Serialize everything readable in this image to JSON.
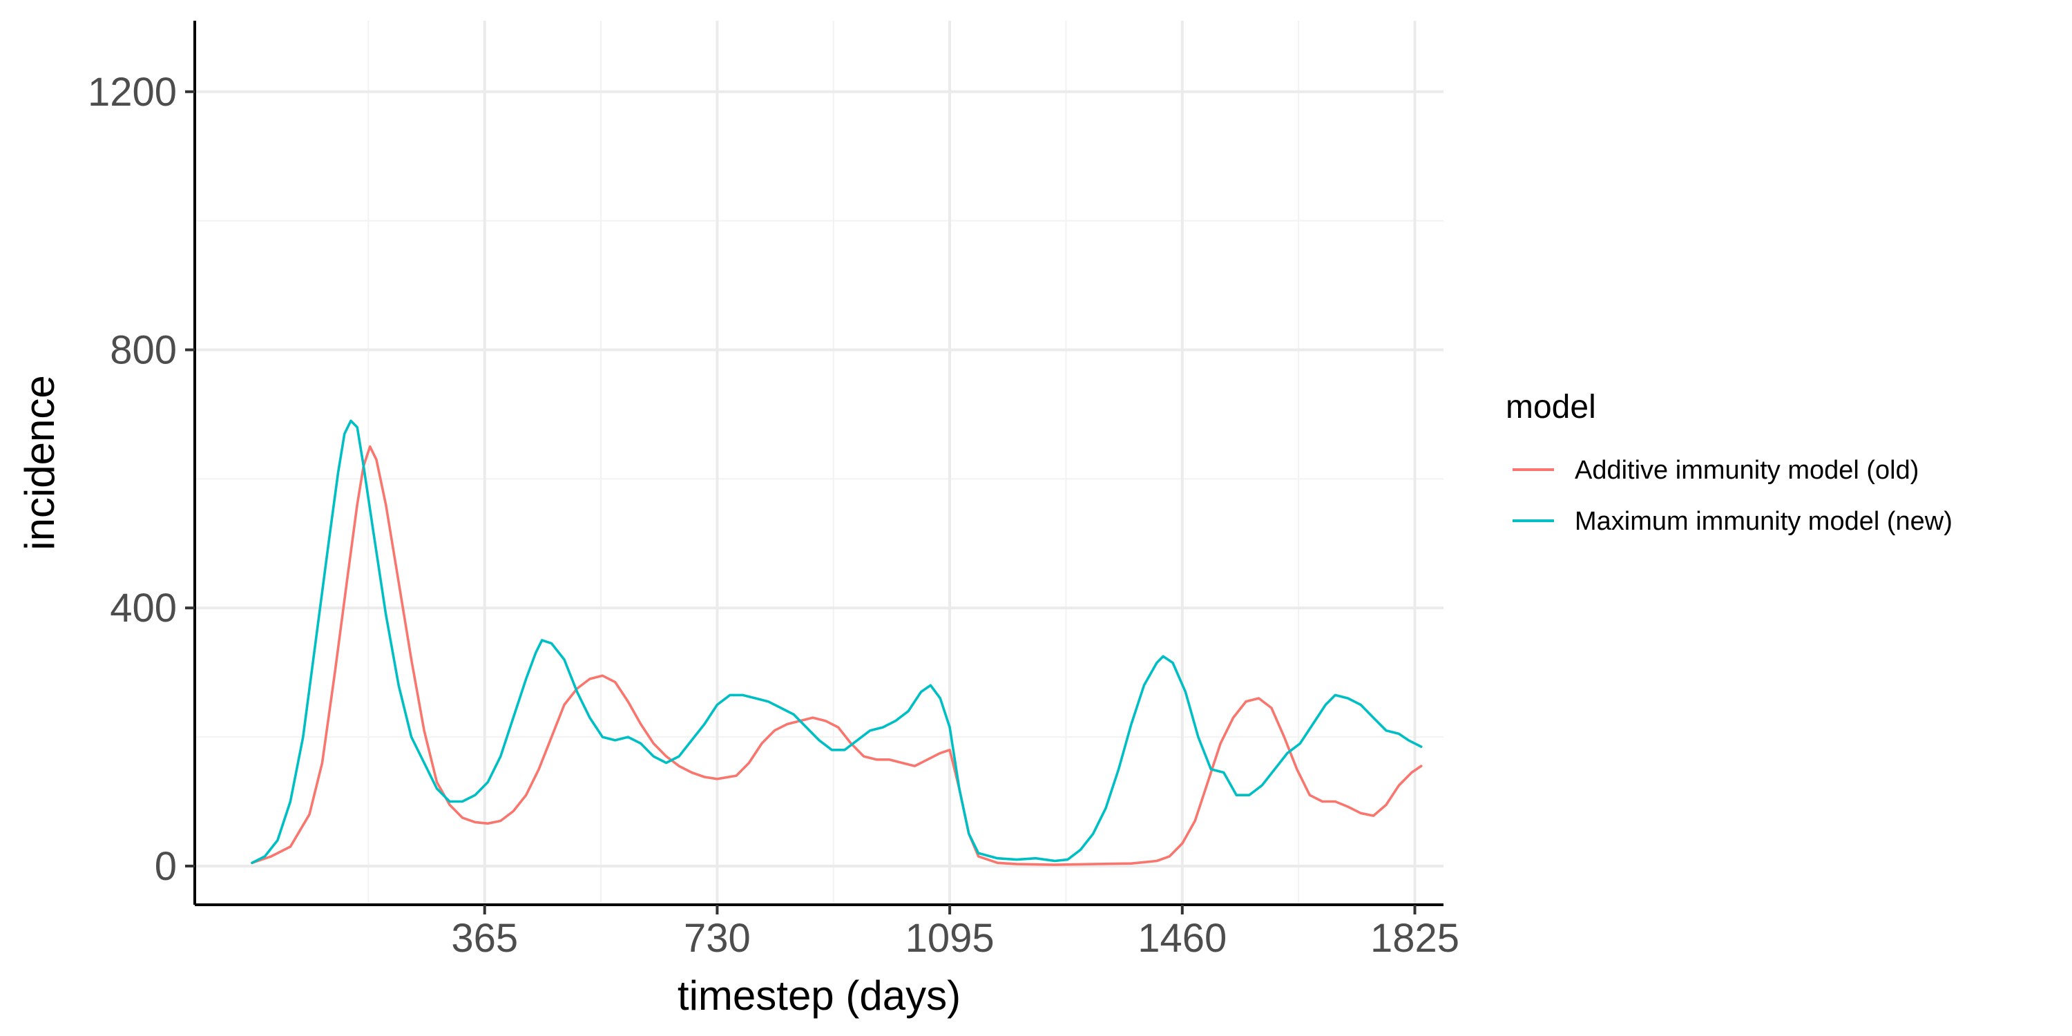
{
  "chart_data": {
    "type": "line",
    "xlabel": "timestep (days)",
    "ylabel": "incidence",
    "xlim": [
      -90,
      1870
    ],
    "ylim": [
      -60,
      1310
    ],
    "x_ticks": [
      365,
      730,
      1095,
      1460,
      1825
    ],
    "x_tick_labels": [
      "365",
      "730",
      "1095",
      "1460",
      "1825"
    ],
    "y_ticks": [
      0,
      400,
      800,
      1200
    ],
    "y_tick_labels": [
      "0",
      "400",
      "800",
      "1200"
    ],
    "grid": true,
    "legend": {
      "title": "model",
      "placement": "right"
    },
    "series": [
      {
        "name": "Additive immunity model (old)",
        "color": "#F8766D",
        "points": [
          [
            0,
            5
          ],
          [
            30,
            15
          ],
          [
            60,
            30
          ],
          [
            90,
            80
          ],
          [
            110,
            160
          ],
          [
            130,
            300
          ],
          [
            150,
            450
          ],
          [
            165,
            560
          ],
          [
            175,
            620
          ],
          [
            185,
            650
          ],
          [
            195,
            630
          ],
          [
            210,
            560
          ],
          [
            230,
            440
          ],
          [
            250,
            320
          ],
          [
            270,
            210
          ],
          [
            290,
            130
          ],
          [
            310,
            95
          ],
          [
            330,
            75
          ],
          [
            350,
            68
          ],
          [
            370,
            66
          ],
          [
            390,
            70
          ],
          [
            410,
            85
          ],
          [
            430,
            110
          ],
          [
            450,
            150
          ],
          [
            470,
            200
          ],
          [
            490,
            250
          ],
          [
            510,
            275
          ],
          [
            530,
            290
          ],
          [
            550,
            295
          ],
          [
            570,
            285
          ],
          [
            590,
            255
          ],
          [
            610,
            220
          ],
          [
            630,
            190
          ],
          [
            650,
            170
          ],
          [
            670,
            155
          ],
          [
            690,
            145
          ],
          [
            710,
            138
          ],
          [
            730,
            135
          ],
          [
            760,
            140
          ],
          [
            780,
            160
          ],
          [
            800,
            190
          ],
          [
            820,
            210
          ],
          [
            840,
            220
          ],
          [
            860,
            225
          ],
          [
            880,
            230
          ],
          [
            900,
            225
          ],
          [
            920,
            215
          ],
          [
            940,
            190
          ],
          [
            960,
            170
          ],
          [
            980,
            165
          ],
          [
            1000,
            165
          ],
          [
            1020,
            160
          ],
          [
            1040,
            155
          ],
          [
            1060,
            165
          ],
          [
            1080,
            175
          ],
          [
            1095,
            180
          ],
          [
            1110,
            120
          ],
          [
            1125,
            50
          ],
          [
            1140,
            15
          ],
          [
            1170,
            5
          ],
          [
            1200,
            3
          ],
          [
            1260,
            2
          ],
          [
            1320,
            3
          ],
          [
            1380,
            4
          ],
          [
            1420,
            8
          ],
          [
            1440,
            15
          ],
          [
            1460,
            35
          ],
          [
            1480,
            70
          ],
          [
            1500,
            130
          ],
          [
            1520,
            190
          ],
          [
            1540,
            230
          ],
          [
            1560,
            255
          ],
          [
            1580,
            260
          ],
          [
            1600,
            245
          ],
          [
            1620,
            200
          ],
          [
            1640,
            150
          ],
          [
            1660,
            110
          ],
          [
            1680,
            100
          ],
          [
            1700,
            100
          ],
          [
            1720,
            92
          ],
          [
            1740,
            82
          ],
          [
            1760,
            78
          ],
          [
            1780,
            95
          ],
          [
            1800,
            125
          ],
          [
            1820,
            145
          ],
          [
            1835,
            155
          ]
        ]
      },
      {
        "name": "Maximum immunity model (new)",
        "color": "#00BFC4",
        "points": [
          [
            0,
            5
          ],
          [
            20,
            15
          ],
          [
            40,
            40
          ],
          [
            60,
            100
          ],
          [
            80,
            200
          ],
          [
            100,
            350
          ],
          [
            120,
            500
          ],
          [
            135,
            610
          ],
          [
            145,
            670
          ],
          [
            155,
            690
          ],
          [
            165,
            680
          ],
          [
            175,
            620
          ],
          [
            190,
            520
          ],
          [
            210,
            390
          ],
          [
            230,
            280
          ],
          [
            250,
            200
          ],
          [
            270,
            160
          ],
          [
            290,
            120
          ],
          [
            310,
            100
          ],
          [
            330,
            100
          ],
          [
            350,
            110
          ],
          [
            370,
            130
          ],
          [
            390,
            170
          ],
          [
            410,
            230
          ],
          [
            430,
            290
          ],
          [
            445,
            330
          ],
          [
            455,
            350
          ],
          [
            470,
            345
          ],
          [
            490,
            320
          ],
          [
            510,
            270
          ],
          [
            530,
            230
          ],
          [
            550,
            200
          ],
          [
            570,
            195
          ],
          [
            590,
            200
          ],
          [
            610,
            190
          ],
          [
            630,
            170
          ],
          [
            650,
            160
          ],
          [
            670,
            170
          ],
          [
            690,
            195
          ],
          [
            710,
            220
          ],
          [
            730,
            250
          ],
          [
            750,
            265
          ],
          [
            770,
            265
          ],
          [
            790,
            260
          ],
          [
            810,
            255
          ],
          [
            830,
            245
          ],
          [
            850,
            235
          ],
          [
            870,
            215
          ],
          [
            890,
            195
          ],
          [
            910,
            180
          ],
          [
            930,
            180
          ],
          [
            950,
            195
          ],
          [
            970,
            210
          ],
          [
            990,
            215
          ],
          [
            1010,
            225
          ],
          [
            1030,
            240
          ],
          [
            1050,
            270
          ],
          [
            1065,
            280
          ],
          [
            1080,
            260
          ],
          [
            1095,
            215
          ],
          [
            1110,
            120
          ],
          [
            1125,
            50
          ],
          [
            1140,
            20
          ],
          [
            1170,
            12
          ],
          [
            1200,
            10
          ],
          [
            1230,
            12
          ],
          [
            1260,
            8
          ],
          [
            1280,
            10
          ],
          [
            1300,
            25
          ],
          [
            1320,
            50
          ],
          [
            1340,
            90
          ],
          [
            1360,
            150
          ],
          [
            1380,
            220
          ],
          [
            1400,
            280
          ],
          [
            1420,
            315
          ],
          [
            1430,
            325
          ],
          [
            1445,
            315
          ],
          [
            1465,
            270
          ],
          [
            1485,
            200
          ],
          [
            1505,
            150
          ],
          [
            1525,
            145
          ],
          [
            1545,
            110
          ],
          [
            1565,
            110
          ],
          [
            1585,
            125
          ],
          [
            1605,
            150
          ],
          [
            1625,
            175
          ],
          [
            1645,
            190
          ],
          [
            1665,
            220
          ],
          [
            1685,
            250
          ],
          [
            1700,
            265
          ],
          [
            1720,
            260
          ],
          [
            1740,
            250
          ],
          [
            1760,
            230
          ],
          [
            1780,
            210
          ],
          [
            1800,
            205
          ],
          [
            1815,
            195
          ],
          [
            1835,
            185
          ]
        ]
      }
    ]
  }
}
